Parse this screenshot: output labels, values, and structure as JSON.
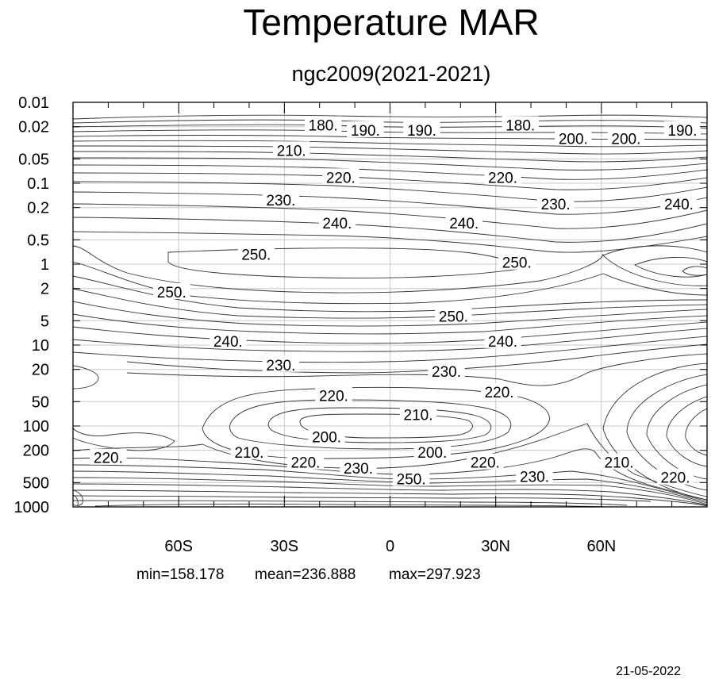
{
  "chart_data": {
    "type": "contour",
    "title": "Temperature MAR",
    "subtitle": "ngc2009(2021-2021)",
    "x": {
      "range": [
        -90,
        90
      ],
      "ticks": [
        {
          "value": -60,
          "label": "60S"
        },
        {
          "value": -30,
          "label": "30S"
        },
        {
          "value": 0,
          "label": "0"
        },
        {
          "value": 30,
          "label": "30N"
        },
        {
          "value": 60,
          "label": "60N"
        }
      ]
    },
    "y": {
      "scale": "log",
      "range": [
        1000,
        0.01
      ],
      "ticks": [
        {
          "value": 0.01,
          "label": "0.01"
        },
        {
          "value": 0.02,
          "label": "0.02"
        },
        {
          "value": 0.05,
          "label": "0.05"
        },
        {
          "value": 0.1,
          "label": "0.1"
        },
        {
          "value": 0.2,
          "label": "0.2"
        },
        {
          "value": 0.5,
          "label": "0.5"
        },
        {
          "value": 1,
          "label": "1"
        },
        {
          "value": 2,
          "label": "2"
        },
        {
          "value": 5,
          "label": "5"
        },
        {
          "value": 10,
          "label": "10"
        },
        {
          "value": 20,
          "label": "20"
        },
        {
          "value": 50,
          "label": "50"
        },
        {
          "value": 100,
          "label": "100"
        },
        {
          "value": 200,
          "label": "200"
        },
        {
          "value": 500,
          "label": "500"
        },
        {
          "value": 1000,
          "label": "1000"
        }
      ]
    },
    "grid": true,
    "contour_interval": 10,
    "stats": {
      "min": 158.178,
      "mean": 236.888,
      "max": 297.923
    },
    "contour_labels": [
      {
        "text": "180.",
        "lat": -19,
        "p": 0.019
      },
      {
        "text": "190.",
        "lat": -7,
        "p": 0.022
      },
      {
        "text": "190.",
        "lat": 9,
        "p": 0.022
      },
      {
        "text": "180.",
        "lat": 37,
        "p": 0.019
      },
      {
        "text": "200.",
        "lat": 52,
        "p": 0.028
      },
      {
        "text": "200.",
        "lat": 67,
        "p": 0.028
      },
      {
        "text": "190.",
        "lat": 83,
        "p": 0.022
      },
      {
        "text": "210.",
        "lat": -28,
        "p": 0.039
      },
      {
        "text": "220.",
        "lat": -14,
        "p": 0.084
      },
      {
        "text": "220.",
        "lat": 32,
        "p": 0.084
      },
      {
        "text": "230.",
        "lat": -31,
        "p": 0.16
      },
      {
        "text": "230.",
        "lat": 47,
        "p": 0.18
      },
      {
        "text": "240.",
        "lat": 82,
        "p": 0.18
      },
      {
        "text": "240.",
        "lat": -15,
        "p": 0.31
      },
      {
        "text": "240.",
        "lat": 21,
        "p": 0.31
      },
      {
        "text": "250.",
        "lat": -38,
        "p": 0.75
      },
      {
        "text": "250.",
        "lat": 36,
        "p": 0.95
      },
      {
        "text": "250.",
        "lat": -62,
        "p": 2.2
      },
      {
        "text": "250.",
        "lat": 18,
        "p": 4.4
      },
      {
        "text": "240.",
        "lat": -46,
        "p": 8.9
      },
      {
        "text": "240.",
        "lat": 32,
        "p": 8.9
      },
      {
        "text": "230.",
        "lat": -31,
        "p": 17.5
      },
      {
        "text": "230.",
        "lat": 16,
        "p": 21
      },
      {
        "text": "220.",
        "lat": -16,
        "p": 42
      },
      {
        "text": "220.",
        "lat": 31,
        "p": 38
      },
      {
        "text": "210.",
        "lat": 8,
        "p": 72
      },
      {
        "text": "200.",
        "lat": -18,
        "p": 135
      },
      {
        "text": "200.",
        "lat": 12,
        "p": 210
      },
      {
        "text": "210.",
        "lat": -40,
        "p": 210
      },
      {
        "text": "220.",
        "lat": -80,
        "p": 245
      },
      {
        "text": "220.",
        "lat": -24,
        "p": 280
      },
      {
        "text": "230.",
        "lat": -9,
        "p": 330
      },
      {
        "text": "220.",
        "lat": 27,
        "p": 280
      },
      {
        "text": "230.",
        "lat": 41,
        "p": 420
      },
      {
        "text": "250.",
        "lat": 6,
        "p": 450
      },
      {
        "text": "210.",
        "lat": 65,
        "p": 280
      },
      {
        "text": "220.",
        "lat": 81,
        "p": 430
      }
    ]
  },
  "footer": {
    "date": "21-05-2022"
  }
}
